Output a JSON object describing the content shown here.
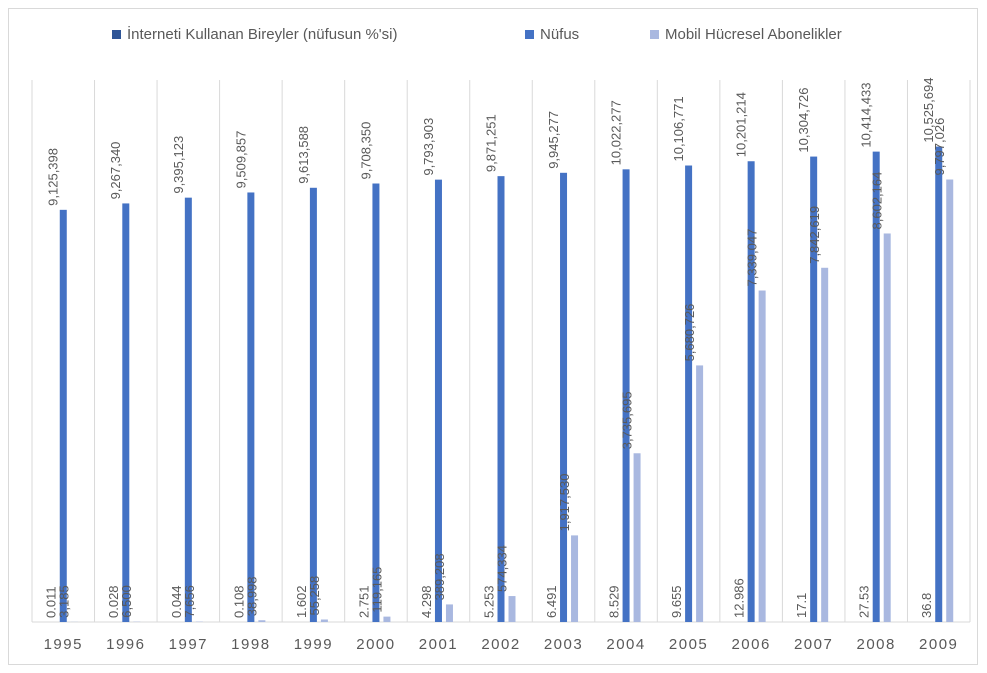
{
  "chart_data": {
    "type": "bar",
    "categories": [
      "1995",
      "1996",
      "1997",
      "1998",
      "1999",
      "2000",
      "2001",
      "2002",
      "2003",
      "2004",
      "2005",
      "2006",
      "2007",
      "2008",
      "2009"
    ],
    "series": [
      {
        "name": "İnterneti Kullanan Bireyler (nüfusun %'si)",
        "color": "#2f5597",
        "values": [
          0.011,
          0.028,
          0.044,
          0.108,
          1.602,
          2.751,
          4.298,
          5.253,
          6.491,
          8.529,
          9.655,
          12.986,
          17.1,
          27.53,
          36.8
        ]
      },
      {
        "name": "Nüfus",
        "color": "#4472c4",
        "values": [
          9125398,
          9267340,
          9395123,
          9509857,
          9613588,
          9708350,
          9793903,
          9871251,
          9945277,
          10022277,
          10106771,
          10201214,
          10304726,
          10414433,
          10525694
        ],
        "value_labels": [
          "9,125,398",
          "9,267,340",
          "9,395,123",
          "9,509,857",
          "9,613,588",
          "9,708,350",
          "9,793,903",
          "9,871,251",
          "9,945,277",
          "10,022,277",
          "10,106,771",
          "10,201,214",
          "10,304,726",
          "10,414,433",
          "10,525,694"
        ]
      },
      {
        "name": "Mobil Hücresel Abonelikler",
        "color": "#a9b8e0",
        "values": [
          3185,
          6500,
          7656,
          38998,
          55258,
          119165,
          389208,
          574334,
          1917530,
          3735695,
          5680726,
          7339047,
          7842619,
          8602164,
          9797026
        ],
        "value_labels": [
          "3,185",
          "6,500",
          "7,656",
          "38,998",
          "55,258",
          "119,165",
          "389,208",
          "574,334",
          "1,917,530",
          "3,735,695",
          "5,680,726",
          "7,339,047",
          "7,842,619",
          "8,602,164",
          "9,797,026"
        ]
      }
    ],
    "ylim": [
      0,
      12000000
    ]
  }
}
